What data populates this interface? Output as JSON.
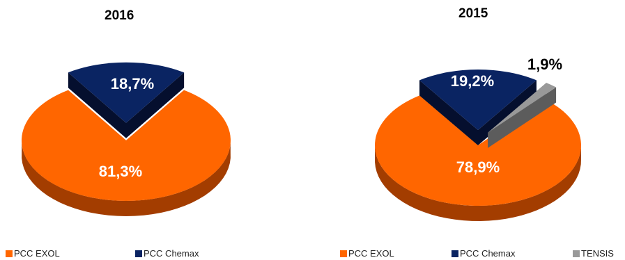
{
  "chart_data": [
    {
      "type": "pie",
      "title": "2016",
      "series": [
        {
          "name": "PCC EXOL",
          "value": 81.3,
          "label": "81,3%",
          "color": "#ff6600",
          "side_color": "#a33d00",
          "label_color": "#ffffff"
        },
        {
          "name": "PCC Chemax",
          "value": 18.7,
          "label": "18,7%",
          "color": "#0a2462",
          "side_color": "#050f2e",
          "label_color": "#ffffff"
        }
      ]
    },
    {
      "type": "pie",
      "title": "2015",
      "series": [
        {
          "name": "PCC EXOL",
          "value": 78.9,
          "label": "78,9%",
          "color": "#ff6600",
          "side_color": "#a33d00",
          "label_color": "#ffffff"
        },
        {
          "name": "PCC Chemax",
          "value": 19.2,
          "label": "19,2%",
          "color": "#0a2462",
          "side_color": "#050f2e",
          "label_color": "#ffffff"
        },
        {
          "name": "TENSIS",
          "value": 1.9,
          "label": "1,9%",
          "color": "#999999",
          "side_color": "#5c5c5c",
          "label_color": "#000000"
        }
      ]
    }
  ]
}
